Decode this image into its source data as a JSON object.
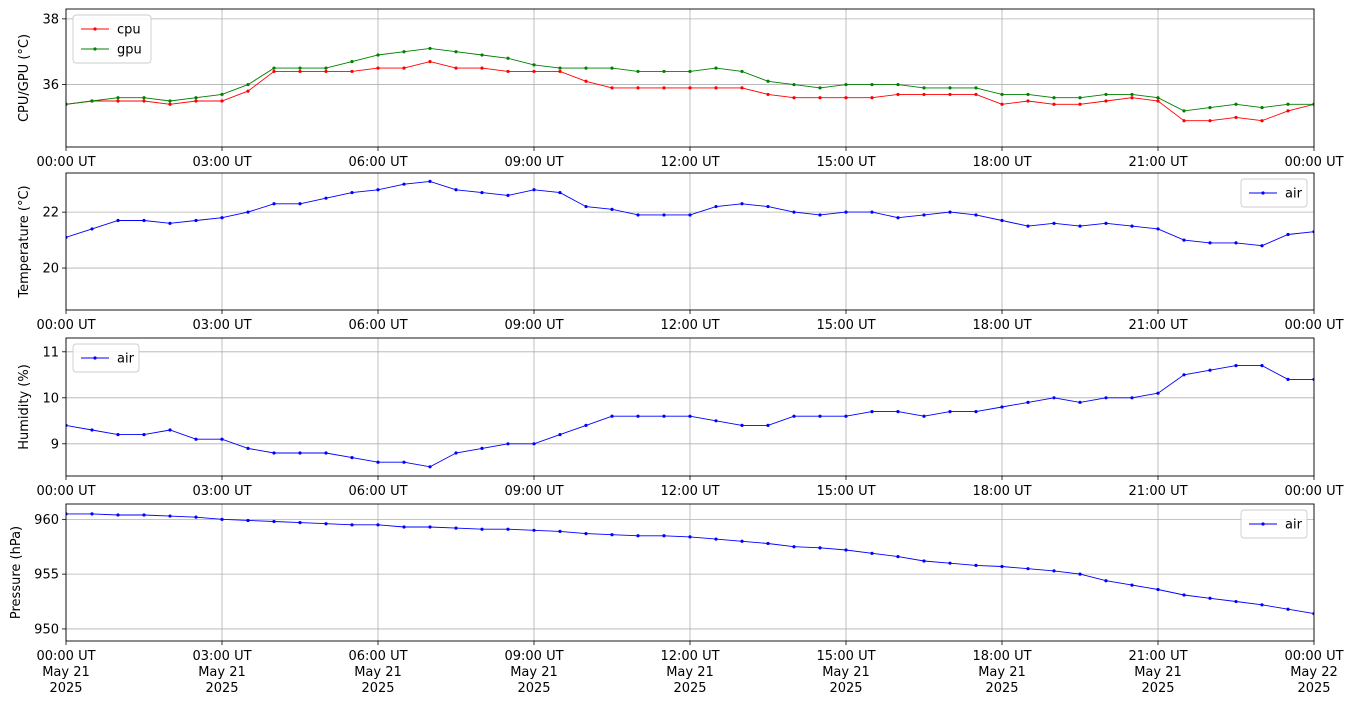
{
  "chart_data": [
    {
      "type": "line",
      "ylabel": "CPU/GPU (°C)",
      "xlabel": "",
      "x_ticks": [
        "00:00 UT",
        "03:00 UT",
        "06:00 UT",
        "09:00 UT",
        "12:00 UT",
        "15:00 UT",
        "18:00 UT",
        "21:00 UT",
        "00:00 UT"
      ],
      "x_range_hours": [
        0,
        24
      ],
      "ylim": [
        34.1,
        38.3
      ],
      "y_ticks": [
        36,
        38
      ],
      "grid": true,
      "legend": "top-left",
      "series": [
        {
          "name": "cpu",
          "color": "#ff0000",
          "x_hours": [
            0,
            0.5,
            1,
            1.5,
            2,
            2.5,
            3,
            3.5,
            4,
            4.5,
            5,
            5.5,
            6,
            6.5,
            7,
            7.5,
            8,
            8.5,
            9,
            9.5,
            10,
            10.5,
            11,
            11.5,
            12,
            12.5,
            13,
            13.5,
            14,
            14.5,
            15,
            15.5,
            16,
            16.5,
            17,
            17.5,
            18,
            18.5,
            19,
            19.5,
            20,
            20.5,
            21,
            21.5,
            22,
            22.5,
            23,
            23.5,
            24
          ],
          "values": [
            35.4,
            35.5,
            35.5,
            35.5,
            35.4,
            35.5,
            35.5,
            35.8,
            36.4,
            36.4,
            36.4,
            36.4,
            36.5,
            36.5,
            36.7,
            36.5,
            36.5,
            36.4,
            36.4,
            36.4,
            36.1,
            35.9,
            35.9,
            35.9,
            35.9,
            35.9,
            35.9,
            35.7,
            35.6,
            35.6,
            35.6,
            35.6,
            35.7,
            35.7,
            35.7,
            35.7,
            35.4,
            35.5,
            35.4,
            35.4,
            35.5,
            35.6,
            35.5,
            34.9,
            34.9,
            35.0,
            34.9,
            35.2,
            35.4
          ]
        },
        {
          "name": "gpu",
          "color": "#008000",
          "x_hours": [
            0,
            0.5,
            1,
            1.5,
            2,
            2.5,
            3,
            3.5,
            4,
            4.5,
            5,
            5.5,
            6,
            6.5,
            7,
            7.5,
            8,
            8.5,
            9,
            9.5,
            10,
            10.5,
            11,
            11.5,
            12,
            12.5,
            13,
            13.5,
            14,
            14.5,
            15,
            15.5,
            16,
            16.5,
            17,
            17.5,
            18,
            18.5,
            19,
            19.5,
            20,
            20.5,
            21,
            21.5,
            22,
            22.5,
            23,
            23.5,
            24
          ],
          "values": [
            35.4,
            35.5,
            35.6,
            35.6,
            35.5,
            35.6,
            35.7,
            36.0,
            36.5,
            36.5,
            36.5,
            36.7,
            36.9,
            37.0,
            37.1,
            37.0,
            36.9,
            36.8,
            36.6,
            36.5,
            36.5,
            36.5,
            36.4,
            36.4,
            36.4,
            36.5,
            36.4,
            36.1,
            36.0,
            35.9,
            36.0,
            36.0,
            36.0,
            35.9,
            35.9,
            35.9,
            35.7,
            35.7,
            35.6,
            35.6,
            35.7,
            35.7,
            35.6,
            35.2,
            35.3,
            35.4,
            35.3,
            35.4,
            35.4
          ]
        }
      ]
    },
    {
      "type": "line",
      "ylabel": "Temperature (°C)",
      "xlabel": "",
      "x_ticks": [
        "00:00 UT",
        "03:00 UT",
        "06:00 UT",
        "09:00 UT",
        "12:00 UT",
        "15:00 UT",
        "18:00 UT",
        "21:00 UT",
        "00:00 UT"
      ],
      "x_range_hours": [
        0,
        24
      ],
      "ylim": [
        18.5,
        23.4
      ],
      "y_ticks": [
        20,
        22
      ],
      "grid": true,
      "legend": "top-right",
      "series": [
        {
          "name": "air",
          "color": "#0000ff",
          "x_hours": [
            0,
            0.5,
            1,
            1.5,
            2,
            2.5,
            3,
            3.5,
            4,
            4.5,
            5,
            5.5,
            6,
            6.5,
            7,
            7.5,
            8,
            8.5,
            9,
            9.5,
            10,
            10.5,
            11,
            11.5,
            12,
            12.5,
            13,
            13.5,
            14,
            14.5,
            15,
            15.5,
            16,
            16.5,
            17,
            17.5,
            18,
            18.5,
            19,
            19.5,
            20,
            20.5,
            21,
            21.5,
            22,
            22.5,
            23,
            23.5,
            24
          ],
          "values": [
            21.1,
            21.4,
            21.7,
            21.7,
            21.6,
            21.7,
            21.8,
            22.0,
            22.3,
            22.3,
            22.5,
            22.7,
            22.8,
            23.0,
            23.1,
            22.8,
            22.7,
            22.6,
            22.8,
            22.7,
            22.2,
            22.1,
            21.9,
            21.9,
            21.9,
            22.2,
            22.3,
            22.2,
            22.0,
            21.9,
            22.0,
            22.0,
            21.8,
            21.9,
            22.0,
            21.9,
            21.7,
            21.5,
            21.6,
            21.5,
            21.6,
            21.5,
            21.4,
            21.0,
            20.9,
            20.9,
            20.8,
            21.2,
            21.3
          ]
        }
      ]
    },
    {
      "type": "line",
      "ylabel": "Humidity (%)",
      "xlabel": "",
      "x_ticks": [
        "00:00 UT",
        "03:00 UT",
        "06:00 UT",
        "09:00 UT",
        "12:00 UT",
        "15:00 UT",
        "18:00 UT",
        "21:00 UT",
        "00:00 UT"
      ],
      "x_range_hours": [
        0,
        24
      ],
      "ylim": [
        8.3,
        11.3
      ],
      "y_ticks": [
        9,
        10,
        11
      ],
      "grid": true,
      "legend": "top-left",
      "series": [
        {
          "name": "air",
          "color": "#0000ff",
          "x_hours": [
            0,
            0.5,
            1,
            1.5,
            2,
            2.5,
            3,
            3.5,
            4,
            4.5,
            5,
            5.5,
            6,
            6.5,
            7,
            7.5,
            8,
            8.5,
            9,
            9.5,
            10,
            10.5,
            11,
            11.5,
            12,
            12.5,
            13,
            13.5,
            14,
            14.5,
            15,
            15.5,
            16,
            16.5,
            17,
            17.5,
            18,
            18.5,
            19,
            19.5,
            20,
            20.5,
            21,
            21.5,
            22,
            22.5,
            23,
            23.5,
            24
          ],
          "values": [
            9.4,
            9.3,
            9.2,
            9.2,
            9.3,
            9.1,
            9.1,
            8.9,
            8.8,
            8.8,
            8.8,
            8.7,
            8.6,
            8.6,
            8.5,
            8.8,
            8.9,
            9.0,
            9.0,
            9.2,
            9.4,
            9.6,
            9.6,
            9.6,
            9.6,
            9.5,
            9.4,
            9.4,
            9.6,
            9.6,
            9.6,
            9.7,
            9.7,
            9.6,
            9.7,
            9.7,
            9.8,
            9.9,
            10.0,
            9.9,
            10.0,
            10.0,
            10.1,
            10.5,
            10.6,
            10.7,
            10.7,
            10.4,
            10.4
          ]
        }
      ]
    },
    {
      "type": "line",
      "ylabel": "Pressure (hPa)",
      "xlabel": "",
      "x_ticks": [
        "00:00 UT\nMay 21\n2025",
        "03:00 UT\nMay 21\n2025",
        "06:00 UT\nMay 21\n2025",
        "09:00 UT\nMay 21\n2025",
        "12:00 UT\nMay 21\n2025",
        "15:00 UT\nMay 21\n2025",
        "18:00 UT\nMay 21\n2025",
        "21:00 UT\nMay 21\n2025",
        "00:00 UT\nMay 22\n2025"
      ],
      "x_range_hours": [
        0,
        24
      ],
      "ylim": [
        948.9,
        961.4
      ],
      "y_ticks": [
        950,
        955,
        960
      ],
      "grid": true,
      "legend": "top-right",
      "series": [
        {
          "name": "air",
          "color": "#0000ff",
          "x_hours": [
            0,
            0.5,
            1,
            1.5,
            2,
            2.5,
            3,
            3.5,
            4,
            4.5,
            5,
            5.5,
            6,
            6.5,
            7,
            7.5,
            8,
            8.5,
            9,
            9.5,
            10,
            10.5,
            11,
            11.5,
            12,
            12.5,
            13,
            13.5,
            14,
            14.5,
            15,
            15.5,
            16,
            16.5,
            17,
            17.5,
            18,
            18.5,
            19,
            19.5,
            20,
            20.5,
            21,
            21.5,
            22,
            22.5,
            23,
            23.5,
            24
          ],
          "values": [
            960.5,
            960.5,
            960.4,
            960.4,
            960.3,
            960.2,
            960.0,
            959.9,
            959.8,
            959.7,
            959.6,
            959.5,
            959.5,
            959.3,
            959.3,
            959.2,
            959.1,
            959.1,
            959.0,
            958.9,
            958.7,
            958.6,
            958.5,
            958.5,
            958.4,
            958.2,
            958.0,
            957.8,
            957.5,
            957.4,
            957.2,
            956.9,
            956.6,
            956.2,
            956.0,
            955.8,
            955.7,
            955.5,
            955.3,
            955.0,
            954.4,
            954.0,
            953.6,
            953.1,
            952.8,
            952.5,
            952.2,
            951.8,
            951.4
          ]
        }
      ]
    }
  ]
}
